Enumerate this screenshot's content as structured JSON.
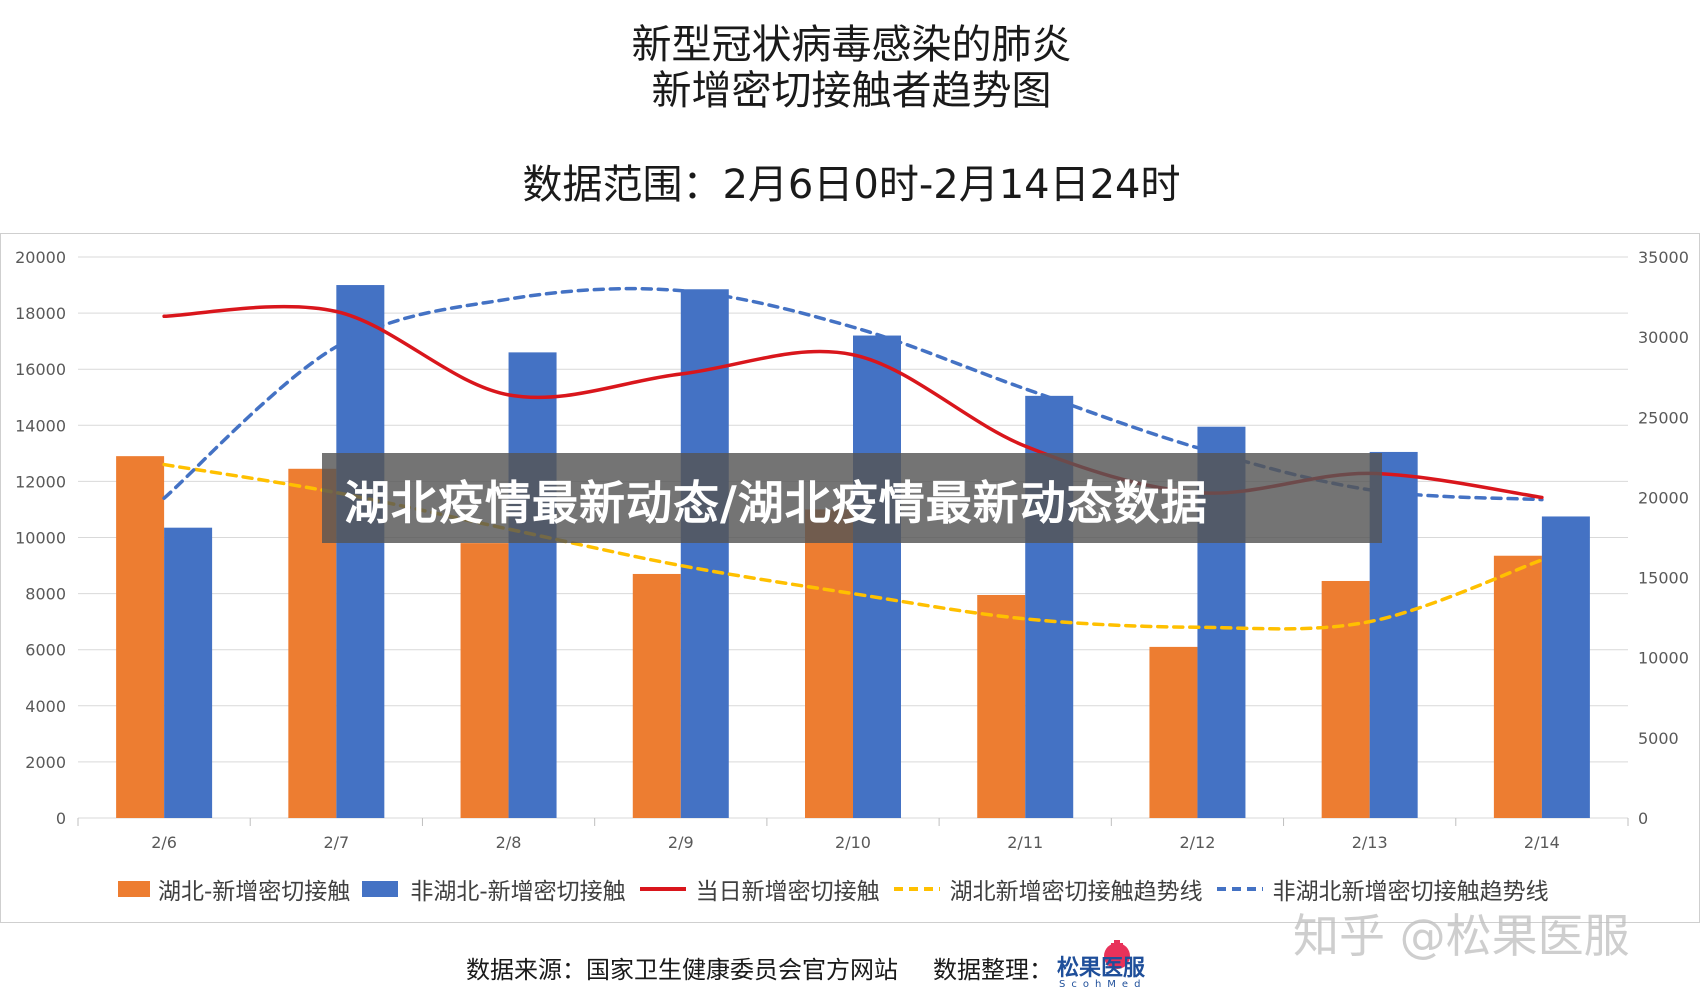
{
  "title": {
    "line1": "新型冠状病毒感染的肺炎",
    "line2": "新增密切接触者趋势图",
    "line3": "数据范围：2月6日0时-2月14日24时"
  },
  "overlay": {
    "text": "湖北疫情最新动态/湖北疫情最新动态数据"
  },
  "watermark": {
    "text": "知乎 @松果医服"
  },
  "footer": {
    "source": "数据来源：国家卫生健康委员会官方网站",
    "organizer": "数据整理：",
    "logo_text": "松果医服",
    "logo_sub": "ScohMed"
  },
  "colors": {
    "hubei_bar": "#ED7D31",
    "nonhubei_bar": "#4472C4",
    "daily_line": "#D9161C",
    "hubei_trend": "#FFC000",
    "nonhubei_trend": "#4472C4"
  },
  "chart_data": {
    "type": "bar",
    "categories": [
      "2/6",
      "2/7",
      "2/8",
      "2/9",
      "2/10",
      "2/11",
      "2/12",
      "2/13",
      "2/14"
    ],
    "y_left": {
      "min": 0,
      "max": 20000,
      "step": 2000,
      "ticks": [
        "0",
        "2000",
        "4000",
        "6000",
        "8000",
        "10000",
        "12000",
        "14000",
        "16000",
        "18000",
        "20000"
      ]
    },
    "y_right": {
      "min": 0,
      "max": 35000,
      "step": 5000,
      "ticks": [
        "0",
        "5000",
        "10000",
        "15000",
        "20000",
        "25000",
        "30000",
        "35000"
      ]
    },
    "grid": true,
    "legend_position": "bottom",
    "series": [
      {
        "name": "湖北-新增密切接触",
        "type": "bar",
        "axis": "left",
        "values": [
          12900,
          12450,
          9800,
          8700,
          11000,
          7950,
          6100,
          8450,
          9350
        ]
      },
      {
        "name": "非湖北-新增密切接触",
        "type": "bar",
        "axis": "left",
        "values": [
          10350,
          19000,
          16600,
          18850,
          17200,
          15050,
          13950,
          13050,
          10750
        ]
      },
      {
        "name": "当日新增密切接触",
        "type": "line",
        "axis": "right",
        "values": [
          31300,
          31600,
          26400,
          27700,
          28900,
          23200,
          20300,
          21500,
          20000
        ]
      },
      {
        "name": "湖北新增密切接触趋势线",
        "type": "line",
        "style": "dashed",
        "axis": "left",
        "values": [
          12600,
          11600,
          10300,
          9000,
          8000,
          7100,
          6800,
          7000,
          9200
        ]
      },
      {
        "name": "非湖北新增密切接触趋势线",
        "type": "line",
        "style": "dashed",
        "axis": "left",
        "values": [
          11400,
          16800,
          18500,
          18800,
          17500,
          15300,
          13200,
          11700,
          11350
        ]
      }
    ]
  }
}
